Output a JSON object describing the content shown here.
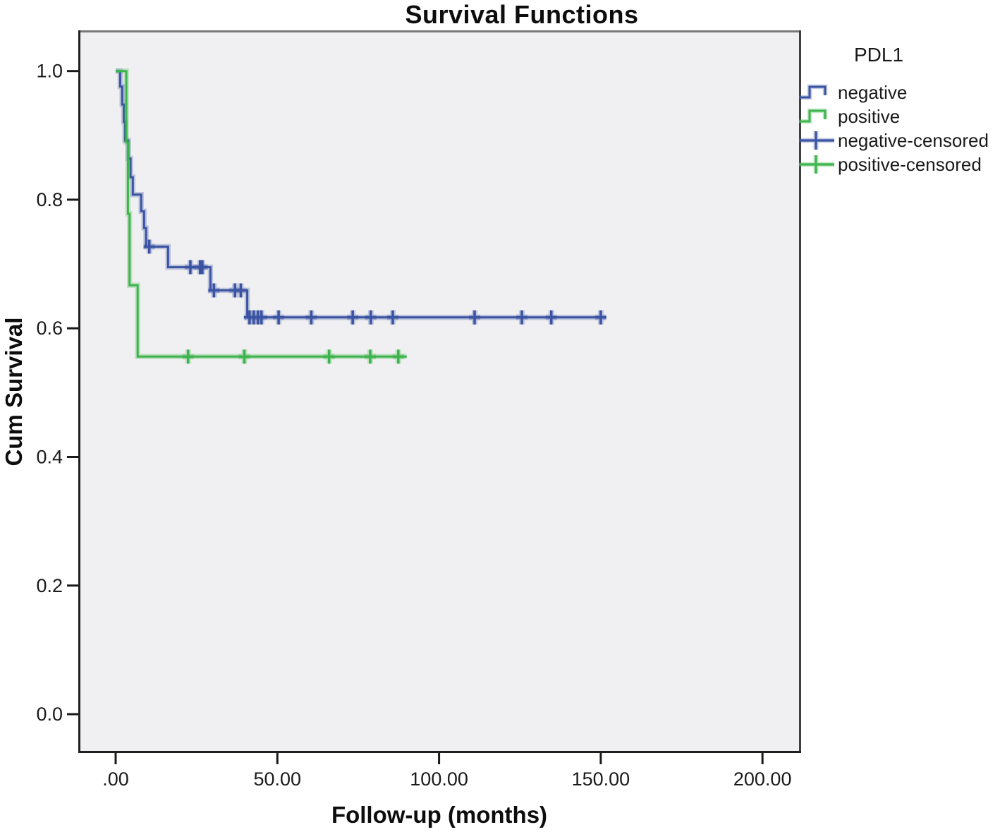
{
  "title": "Survival Functions",
  "axes": {
    "xlabel": "Follow-up (months)",
    "ylabel": "Cum Survival"
  },
  "legend": {
    "title": "PDL1",
    "entries": [
      {
        "label": "negative",
        "symbol": "step-line",
        "color": "#3a53a3"
      },
      {
        "label": "positive",
        "symbol": "step-line",
        "color": "#3cb44b"
      },
      {
        "label": "negative-censored",
        "symbol": "censor-plus",
        "color": "#3a53a3"
      },
      {
        "label": "positive-censored",
        "symbol": "censor-plus",
        "color": "#3cb44b"
      }
    ]
  },
  "colors": {
    "negative": "#3a53a3",
    "positive": "#3cb44b",
    "plot_background": "#f0f0f2",
    "frame_top": "#787878",
    "frame_right": "#3f3f3f",
    "frame_left": "#1f1f1f",
    "frame_bottom": "#1f1f1f",
    "axis_text": "#1a1a1a"
  },
  "chart_data": {
    "type": "line",
    "subtype": "kaplan-meier-step",
    "title": "Survival Functions",
    "xlabel": "Follow-up (months)",
    "ylabel": "Cum Survival",
    "xlim": [
      -10.9,
      211.3
    ],
    "ylim": [
      -0.057,
      1.06
    ],
    "grid": false,
    "legend_position": "right",
    "plot_bg": "#f0f0f2",
    "axis_color": "#1a1a1a",
    "x_ticks": [
      0,
      50,
      100,
      150,
      200
    ],
    "x_tick_labels": [
      ".00",
      "50.00",
      "100.00",
      "150.00",
      "200.00"
    ],
    "y_ticks": [
      0.0,
      0.2,
      0.4,
      0.6,
      0.8,
      1.0
    ],
    "y_tick_labels": [
      "0.0",
      "0.2",
      "0.4",
      "0.6",
      "0.8",
      "1.0"
    ],
    "series": [
      {
        "name": "negative",
        "color": "#3a53a3",
        "steps": [
          [
            0,
            1.0
          ],
          [
            1.4,
            0.976
          ],
          [
            2.0,
            0.948
          ],
          [
            2.5,
            0.921
          ],
          [
            2.9,
            0.892
          ],
          [
            3.9,
            0.864
          ],
          [
            4.6,
            0.835
          ],
          [
            5.3,
            0.808
          ],
          [
            7.9,
            0.782
          ],
          [
            8.8,
            0.756
          ],
          [
            9.4,
            0.727
          ],
          [
            16.2,
            0.695
          ],
          [
            29.3,
            0.659
          ],
          [
            40.7,
            0.617
          ],
          [
            151.5,
            0.617
          ]
        ],
        "censored": [
          [
            10.4,
            0.727
          ],
          [
            23.1,
            0.695
          ],
          [
            26.1,
            0.695
          ],
          [
            26.8,
            0.695
          ],
          [
            30.4,
            0.659
          ],
          [
            36.9,
            0.659
          ],
          [
            38.7,
            0.659
          ],
          [
            41.4,
            0.617
          ],
          [
            42.7,
            0.617
          ],
          [
            44.0,
            0.617
          ],
          [
            45.1,
            0.617
          ],
          [
            50.4,
            0.617
          ],
          [
            60.5,
            0.617
          ],
          [
            73.3,
            0.617
          ],
          [
            78.9,
            0.617
          ],
          [
            85.7,
            0.617
          ],
          [
            111.0,
            0.617
          ],
          [
            125.6,
            0.617
          ],
          [
            134.7,
            0.617
          ],
          [
            150.0,
            0.617
          ]
        ]
      },
      {
        "name": "positive",
        "color": "#3cb44b",
        "steps": [
          [
            0,
            1.0
          ],
          [
            3.3,
            0.889
          ],
          [
            3.8,
            0.778
          ],
          [
            4.3,
            0.667
          ],
          [
            6.8,
            0.556
          ],
          [
            90,
            0.556
          ]
        ],
        "censored": [
          [
            22.4,
            0.556
          ],
          [
            39.8,
            0.556
          ],
          [
            66.0,
            0.556
          ],
          [
            78.7,
            0.556
          ],
          [
            87.4,
            0.556
          ]
        ]
      }
    ]
  }
}
